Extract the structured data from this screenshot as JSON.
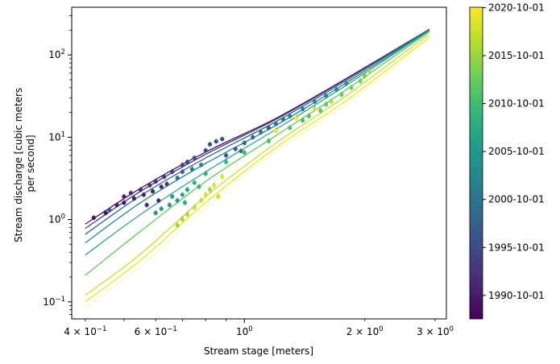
{
  "chart_data": {
    "type": "scatter",
    "title": "",
    "xlabel": "Stream stage [meters]",
    "ylabel_lines": [
      "Stream discharge [cubic meters",
      "per second]"
    ],
    "xscale": "log",
    "yscale": "log",
    "xlim": [
      0.37,
      3.2
    ],
    "ylim": [
      0.062,
      380
    ],
    "x_major_ticks": [
      {
        "value": 1,
        "label": "10⁰"
      }
    ],
    "x_minor_ticks": [
      {
        "value": 0.4,
        "label": "4 × 10⁻¹"
      },
      {
        "value": 0.6,
        "label": "6 × 10⁻¹"
      },
      {
        "value": 2,
        "label": "2 × 10⁰"
      },
      {
        "value": 3,
        "label": "3 × 10⁰"
      }
    ],
    "y_major_ticks": [
      {
        "value": 0.1,
        "label": "10⁻¹"
      },
      {
        "value": 1,
        "label": "10⁰"
      },
      {
        "value": 10,
        "label": "10¹"
      },
      {
        "value": 100,
        "label": "10²"
      }
    ],
    "grid": false,
    "legend": "none",
    "colorbar": {
      "label": "",
      "colormap": [
        "#440154",
        "#482878",
        "#3e4989",
        "#31688e",
        "#26828e",
        "#1f9e89",
        "#35b779",
        "#6ece58",
        "#b5de2b",
        "#fde725"
      ],
      "range_years": [
        1988.3,
        2020.8
      ],
      "ticks": [
        {
          "year": 1990.75,
          "label": "1990-10-01"
        },
        {
          "year": 1995.75,
          "label": "1995-10-01"
        },
        {
          "year": 2000.75,
          "label": "2000-10-01"
        },
        {
          "year": 2005.75,
          "label": "2005-10-01"
        },
        {
          "year": 2010.75,
          "label": "2010-10-01"
        },
        {
          "year": 2015.75,
          "label": "2015-10-01"
        },
        {
          "year": 2020.75,
          "label": "2020-10-01"
        }
      ]
    },
    "rating_curves": [
      {
        "year": 1990,
        "x": [
          0.4,
          0.55,
          0.8,
          1.2,
          1.8,
          2.9
        ],
        "y": [
          0.88,
          2.4,
          6.6,
          17,
          52,
          205
        ]
      },
      {
        "year": 1994,
        "x": [
          0.4,
          0.55,
          0.8,
          1.2,
          1.8,
          2.9
        ],
        "y": [
          0.78,
          2.2,
          6.2,
          16.5,
          51,
          205
        ]
      },
      {
        "year": 1999,
        "x": [
          0.4,
          0.55,
          0.8,
          1.2,
          1.8,
          2.9
        ],
        "y": [
          0.66,
          1.95,
          5.6,
          15.5,
          49,
          203
        ]
      },
      {
        "year": 2004,
        "x": [
          0.4,
          0.55,
          0.8,
          1.2,
          1.8,
          2.9
        ],
        "y": [
          0.52,
          1.6,
          4.8,
          14,
          46,
          200
        ]
      },
      {
        "year": 2008,
        "x": [
          0.4,
          0.55,
          0.8,
          1.2,
          1.8,
          2.9
        ],
        "y": [
          0.37,
          1.15,
          3.8,
          12.5,
          43,
          197
        ]
      },
      {
        "year": 2013,
        "x": [
          0.4,
          0.55,
          0.8,
          1.2,
          1.8,
          2.9
        ],
        "y": [
          0.21,
          0.72,
          2.9,
          10.5,
          38,
          192
        ]
      },
      {
        "year": 2018,
        "x": [
          0.4,
          0.55,
          0.8,
          1.2,
          1.8,
          2.9
        ],
        "y": [
          0.12,
          0.38,
          1.9,
          8.5,
          32,
          180
        ]
      },
      {
        "year": 2020,
        "x": [
          0.4,
          0.55,
          0.8,
          1.2,
          1.8,
          2.9
        ],
        "y": [
          0.1,
          0.32,
          1.6,
          7.5,
          28,
          165
        ]
      },
      {
        "year": 2021,
        "x": [
          0.4,
          0.55,
          0.8,
          1.2,
          1.8,
          2.9
        ],
        "y": [
          0.085,
          0.27,
          1.4,
          6.8,
          25,
          155
        ]
      }
    ],
    "points": [
      {
        "year": 1989.5,
        "x": 0.42,
        "y": 1.05
      },
      {
        "year": 1990.1,
        "x": 0.45,
        "y": 1.2
      },
      {
        "year": 1990.6,
        "x": 0.48,
        "y": 1.5
      },
      {
        "year": 1991.2,
        "x": 0.5,
        "y": 1.9
      },
      {
        "year": 1991.7,
        "x": 0.52,
        "y": 2.1
      },
      {
        "year": 1992.1,
        "x": 0.55,
        "y": 2.3
      },
      {
        "year": 1992.6,
        "x": 0.58,
        "y": 2.6
      },
      {
        "year": 1993.1,
        "x": 0.6,
        "y": 2.9
      },
      {
        "year": 1993.5,
        "x": 0.63,
        "y": 3.3
      },
      {
        "year": 1994.0,
        "x": 0.66,
        "y": 3.8
      },
      {
        "year": 1994.4,
        "x": 0.7,
        "y": 4.6
      },
      {
        "year": 1995.0,
        "x": 0.75,
        "y": 5.6
      },
      {
        "year": 1995.5,
        "x": 0.8,
        "y": 6.9
      },
      {
        "year": 1996.0,
        "x": 0.82,
        "y": 8.2
      },
      {
        "year": 1996.5,
        "x": 0.85,
        "y": 8.9
      },
      {
        "year": 1989.8,
        "x": 0.5,
        "y": 1.6
      },
      {
        "year": 1990.3,
        "x": 0.53,
        "y": 1.8
      },
      {
        "year": 1990.9,
        "x": 0.56,
        "y": 2.0
      },
      {
        "year": 1991.5,
        "x": 0.59,
        "y": 2.2
      },
      {
        "year": 1992.0,
        "x": 0.62,
        "y": 2.5
      },
      {
        "year": 1992.4,
        "x": 0.61,
        "y": 1.7
      },
      {
        "year": 1992.9,
        "x": 0.57,
        "y": 1.5
      },
      {
        "year": 1993.3,
        "x": 0.64,
        "y": 2.7
      },
      {
        "year": 1994.8,
        "x": 0.72,
        "y": 5.0
      },
      {
        "year": 1995.3,
        "x": 0.88,
        "y": 9.5
      },
      {
        "year": 1995.9,
        "x": 0.46,
        "y": 1.3
      },
      {
        "year": 1997.1,
        "x": 0.9,
        "y": 6.0
      },
      {
        "year": 1997.8,
        "x": 0.95,
        "y": 7.2
      },
      {
        "year": 1998.5,
        "x": 1.0,
        "y": 8.5
      },
      {
        "year": 1999.2,
        "x": 1.05,
        "y": 10.0
      },
      {
        "year": 1999.9,
        "x": 1.1,
        "y": 11.5
      },
      {
        "year": 2000.5,
        "x": 1.2,
        "y": 14.5
      },
      {
        "year": 2001.2,
        "x": 1.25,
        "y": 16.5
      },
      {
        "year": 2001.9,
        "x": 1.3,
        "y": 18.0
      },
      {
        "year": 2002.5,
        "x": 1.4,
        "y": 22.0
      },
      {
        "year": 2003.1,
        "x": 1.5,
        "y": 27.0
      },
      {
        "year": 2003.8,
        "x": 1.6,
        "y": 32.0
      },
      {
        "year": 2004.4,
        "x": 1.7,
        "y": 38.0
      },
      {
        "year": 2005.0,
        "x": 1.8,
        "y": 45.0
      },
      {
        "year": 1998.0,
        "x": 0.7,
        "y": 3.8
      },
      {
        "year": 2000.0,
        "x": 0.68,
        "y": 3.2
      },
      {
        "year": 2001.5,
        "x": 0.74,
        "y": 4.1
      },
      {
        "year": 2002.0,
        "x": 0.78,
        "y": 4.6
      },
      {
        "year": 1999.5,
        "x": 0.98,
        "y": 6.8
      },
      {
        "year": 1996.8,
        "x": 1.15,
        "y": 13.0
      },
      {
        "year": 2005.5,
        "x": 0.6,
        "y": 1.2
      },
      {
        "year": 2006.2,
        "x": 0.65,
        "y": 1.5
      },
      {
        "year": 2006.8,
        "x": 0.68,
        "y": 1.7
      },
      {
        "year": 2007.4,
        "x": 0.7,
        "y": 2.0
      },
      {
        "year": 2008.0,
        "x": 0.72,
        "y": 2.3
      },
      {
        "year": 2008.6,
        "x": 0.75,
        "y": 2.8
      },
      {
        "year": 2009.2,
        "x": 0.8,
        "y": 3.6
      },
      {
        "year": 2009.8,
        "x": 0.9,
        "y": 5.0
      },
      {
        "year": 2010.3,
        "x": 1.0,
        "y": 6.5
      },
      {
        "year": 2010.9,
        "x": 1.15,
        "y": 9.0
      },
      {
        "year": 2011.4,
        "x": 1.3,
        "y": 13.0
      },
      {
        "year": 2012.0,
        "x": 1.45,
        "y": 18.0
      },
      {
        "year": 2012.6,
        "x": 1.6,
        "y": 25.0
      },
      {
        "year": 2013.1,
        "x": 1.75,
        "y": 33.0
      },
      {
        "year": 2013.7,
        "x": 1.85,
        "y": 40.0
      },
      {
        "year": 2014.2,
        "x": 1.95,
        "y": 48.0
      },
      {
        "year": 2014.8,
        "x": 2.0,
        "y": 55.0
      },
      {
        "year": 2015.4,
        "x": 2.05,
        "y": 65.0
      },
      {
        "year": 2006.5,
        "x": 0.62,
        "y": 1.35
      },
      {
        "year": 2007.0,
        "x": 0.66,
        "y": 1.9
      },
      {
        "year": 2008.3,
        "x": 0.71,
        "y": 1.6
      },
      {
        "year": 2009.5,
        "x": 0.77,
        "y": 2.5
      },
      {
        "year": 2011.0,
        "x": 1.4,
        "y": 16.0
      },
      {
        "year": 2012.3,
        "x": 1.55,
        "y": 21.0
      },
      {
        "year": 2016.0,
        "x": 0.68,
        "y": 0.85
      },
      {
        "year": 2016.6,
        "x": 0.7,
        "y": 1.0
      },
      {
        "year": 2017.2,
        "x": 0.72,
        "y": 1.15
      },
      {
        "year": 2017.8,
        "x": 0.75,
        "y": 1.4
      },
      {
        "year": 2018.3,
        "x": 0.78,
        "y": 1.7
      },
      {
        "year": 2018.9,
        "x": 0.8,
        "y": 2.0
      },
      {
        "year": 2019.4,
        "x": 0.84,
        "y": 2.6
      },
      {
        "year": 2019.9,
        "x": 0.88,
        "y": 3.3
      },
      {
        "year": 2020.3,
        "x": 1.2,
        "y": 12.0
      },
      {
        "year": 2020.6,
        "x": 1.35,
        "y": 17.0
      },
      {
        "year": 2019.0,
        "x": 1.5,
        "y": 22.0
      },
      {
        "year": 2017.5,
        "x": 1.65,
        "y": 27.0
      },
      {
        "year": 2016.3,
        "x": 0.82,
        "y": 2.3
      },
      {
        "year": 2018.6,
        "x": 0.86,
        "y": 1.9
      }
    ]
  }
}
